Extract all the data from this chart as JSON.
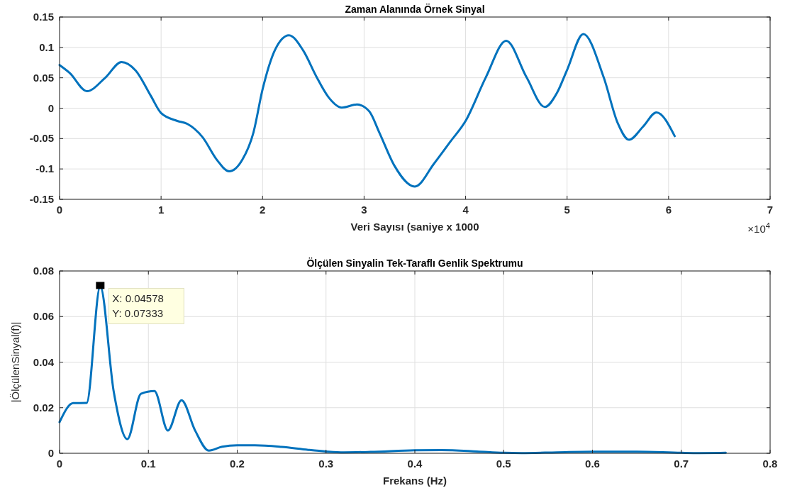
{
  "chart_data": [
    {
      "type": "line",
      "title": "Zaman Alanında Örnek Sinyal",
      "xlabel": "Veri Sayısı (saniye x 1000",
      "grid": true,
      "xlim": [
        0,
        7
      ],
      "ylim": [
        -0.15,
        0.15
      ],
      "xticks": [
        0,
        1,
        2,
        3,
        4,
        5,
        6,
        7
      ],
      "yticks": [
        -0.15,
        -0.1,
        -0.05,
        0,
        0.05,
        0.1,
        0.15
      ],
      "annotations": [
        "×10$^{4}$"
      ],
      "series": [
        {
          "color": "#0072bd",
          "x": [
            0,
            0.1,
            0.27,
            0.45,
            0.61,
            0.75,
            0.9,
            1.0,
            1.16,
            1.26,
            1.41,
            1.55,
            1.67,
            1.8,
            1.91,
            2.0,
            2.12,
            2.26,
            2.4,
            2.53,
            2.65,
            2.78,
            2.93,
            3.05,
            3.15,
            3.3,
            3.5,
            3.69,
            3.85,
            4.0,
            4.2,
            4.4,
            4.6,
            4.78,
            4.9,
            5.0,
            5.16,
            5.36,
            5.5,
            5.61,
            5.75,
            5.88,
            6.06
          ],
          "values": [
            0.071,
            0.058,
            0.028,
            0.05,
            0.076,
            0.062,
            0.02,
            -0.008,
            -0.021,
            -0.026,
            -0.048,
            -0.085,
            -0.104,
            -0.085,
            -0.04,
            0.031,
            0.095,
            0.12,
            0.095,
            0.052,
            0.018,
            0.001,
            0.006,
            -0.005,
            -0.04,
            -0.095,
            -0.129,
            -0.091,
            -0.055,
            -0.021,
            0.051,
            0.111,
            0.051,
            0.002,
            0.025,
            0.063,
            0.122,
            0.051,
            -0.025,
            -0.052,
            -0.03,
            -0.007,
            -0.046
          ]
        }
      ]
    },
    {
      "type": "line",
      "title": "Ölçülen Sinyalin Tek-Taraflı Genlik Spektrumu",
      "xlabel": "Frekans (Hz)",
      "ylabel": "|ÖlçülenSinyal(f)|",
      "grid": true,
      "xlim": [
        0,
        0.8
      ],
      "ylim": [
        0,
        0.08
      ],
      "xticks": [
        0,
        0.1,
        0.2,
        0.3,
        0.4,
        0.5,
        0.6,
        0.7,
        0.8
      ],
      "yticks": [
        0,
        0.02,
        0.04,
        0.06,
        0.08
      ],
      "annotations": [
        {
          "text": "X: 0.04578\nY: 0.07333",
          "x": 0.04578,
          "y": 0.07333
        }
      ],
      "series": [
        {
          "color": "#0072bd",
          "x": [
            0,
            0.0153,
            0.0305,
            0.04578,
            0.061,
            0.0763,
            0.0916,
            0.1068,
            0.122,
            0.1373,
            0.1526,
            0.168,
            0.183,
            0.2,
            0.22,
            0.25,
            0.28,
            0.3,
            0.32,
            0.35,
            0.4,
            0.43,
            0.47,
            0.5,
            0.52,
            0.56,
            0.6,
            0.65,
            0.7,
            0.72,
            0.75
          ],
          "values": [
            0.0137,
            0.022,
            0.0221,
            0.07333,
            0.027,
            0.0062,
            0.0261,
            0.0273,
            0.01,
            0.0233,
            0.01,
            0.0012,
            0.0029,
            0.0035,
            0.0035,
            0.0028,
            0.0015,
            0.0008,
            0.0004,
            0.0006,
            0.0013,
            0.0014,
            0.0008,
            0.0002,
            0.0001,
            0.0004,
            0.0007,
            0.0007,
            0.0002,
            0.0001,
            0.0002
          ]
        }
      ]
    }
  ]
}
